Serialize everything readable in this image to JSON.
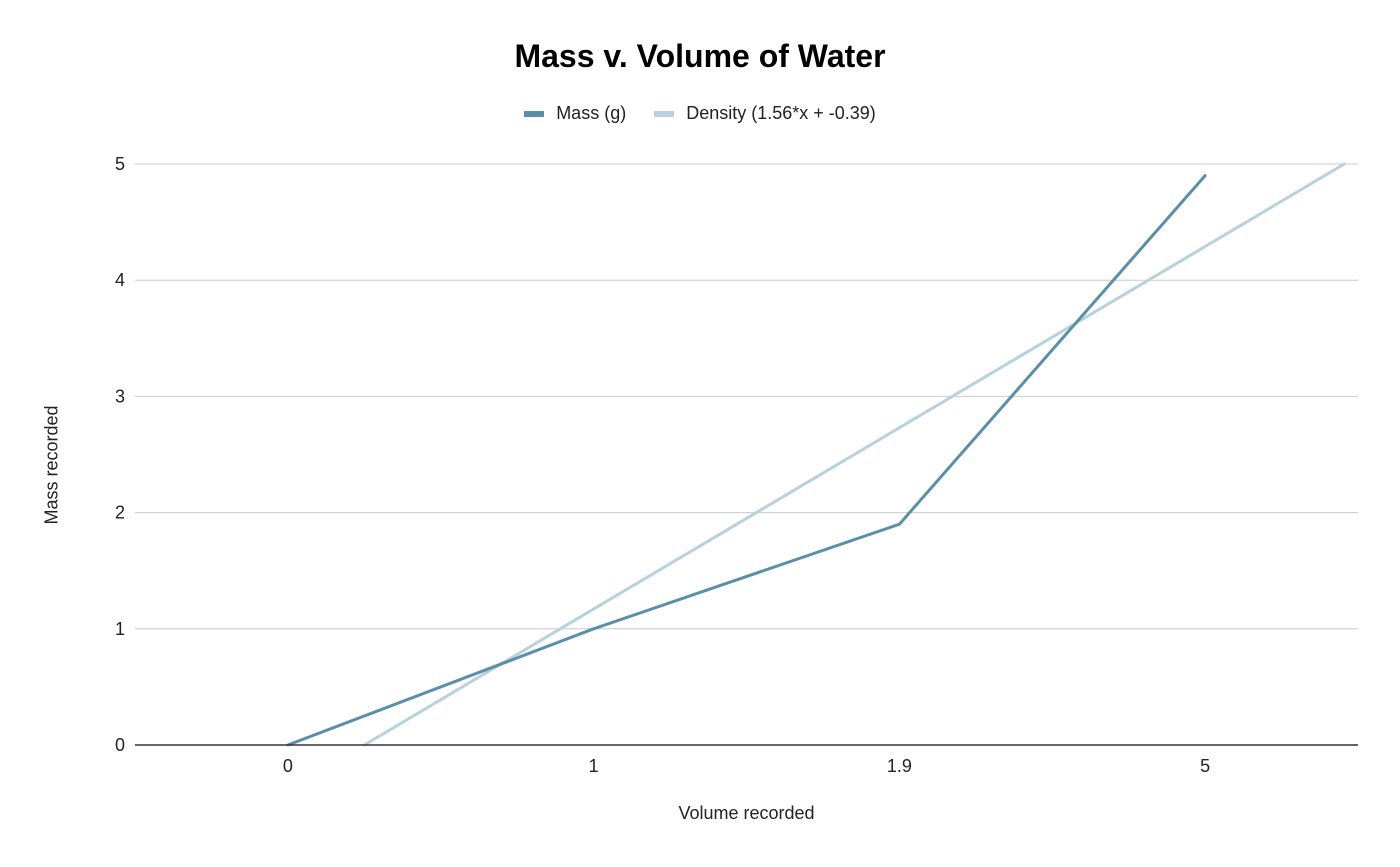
{
  "chart_data": {
    "type": "line",
    "title": "Mass v. Volume of Water",
    "xlabel": "Volume recorded",
    "ylabel": "Mass recorded",
    "categories": [
      "0",
      "1",
      "1.9",
      "5"
    ],
    "ylim": [
      0,
      5
    ],
    "yticks": [
      "0",
      "1",
      "2",
      "3",
      "4",
      "5"
    ],
    "grid": true,
    "legend_position": "top",
    "series": [
      {
        "name": "Mass (g)",
        "values": [
          0,
          1,
          1.9,
          4.9
        ],
        "color": "#5b8fa8"
      },
      {
        "name": "Density (1.56*x + -0.39)",
        "trendline": {
          "slope": 1.56,
          "intercept": -0.39
        },
        "color": "#b9d1dc"
      }
    ]
  }
}
